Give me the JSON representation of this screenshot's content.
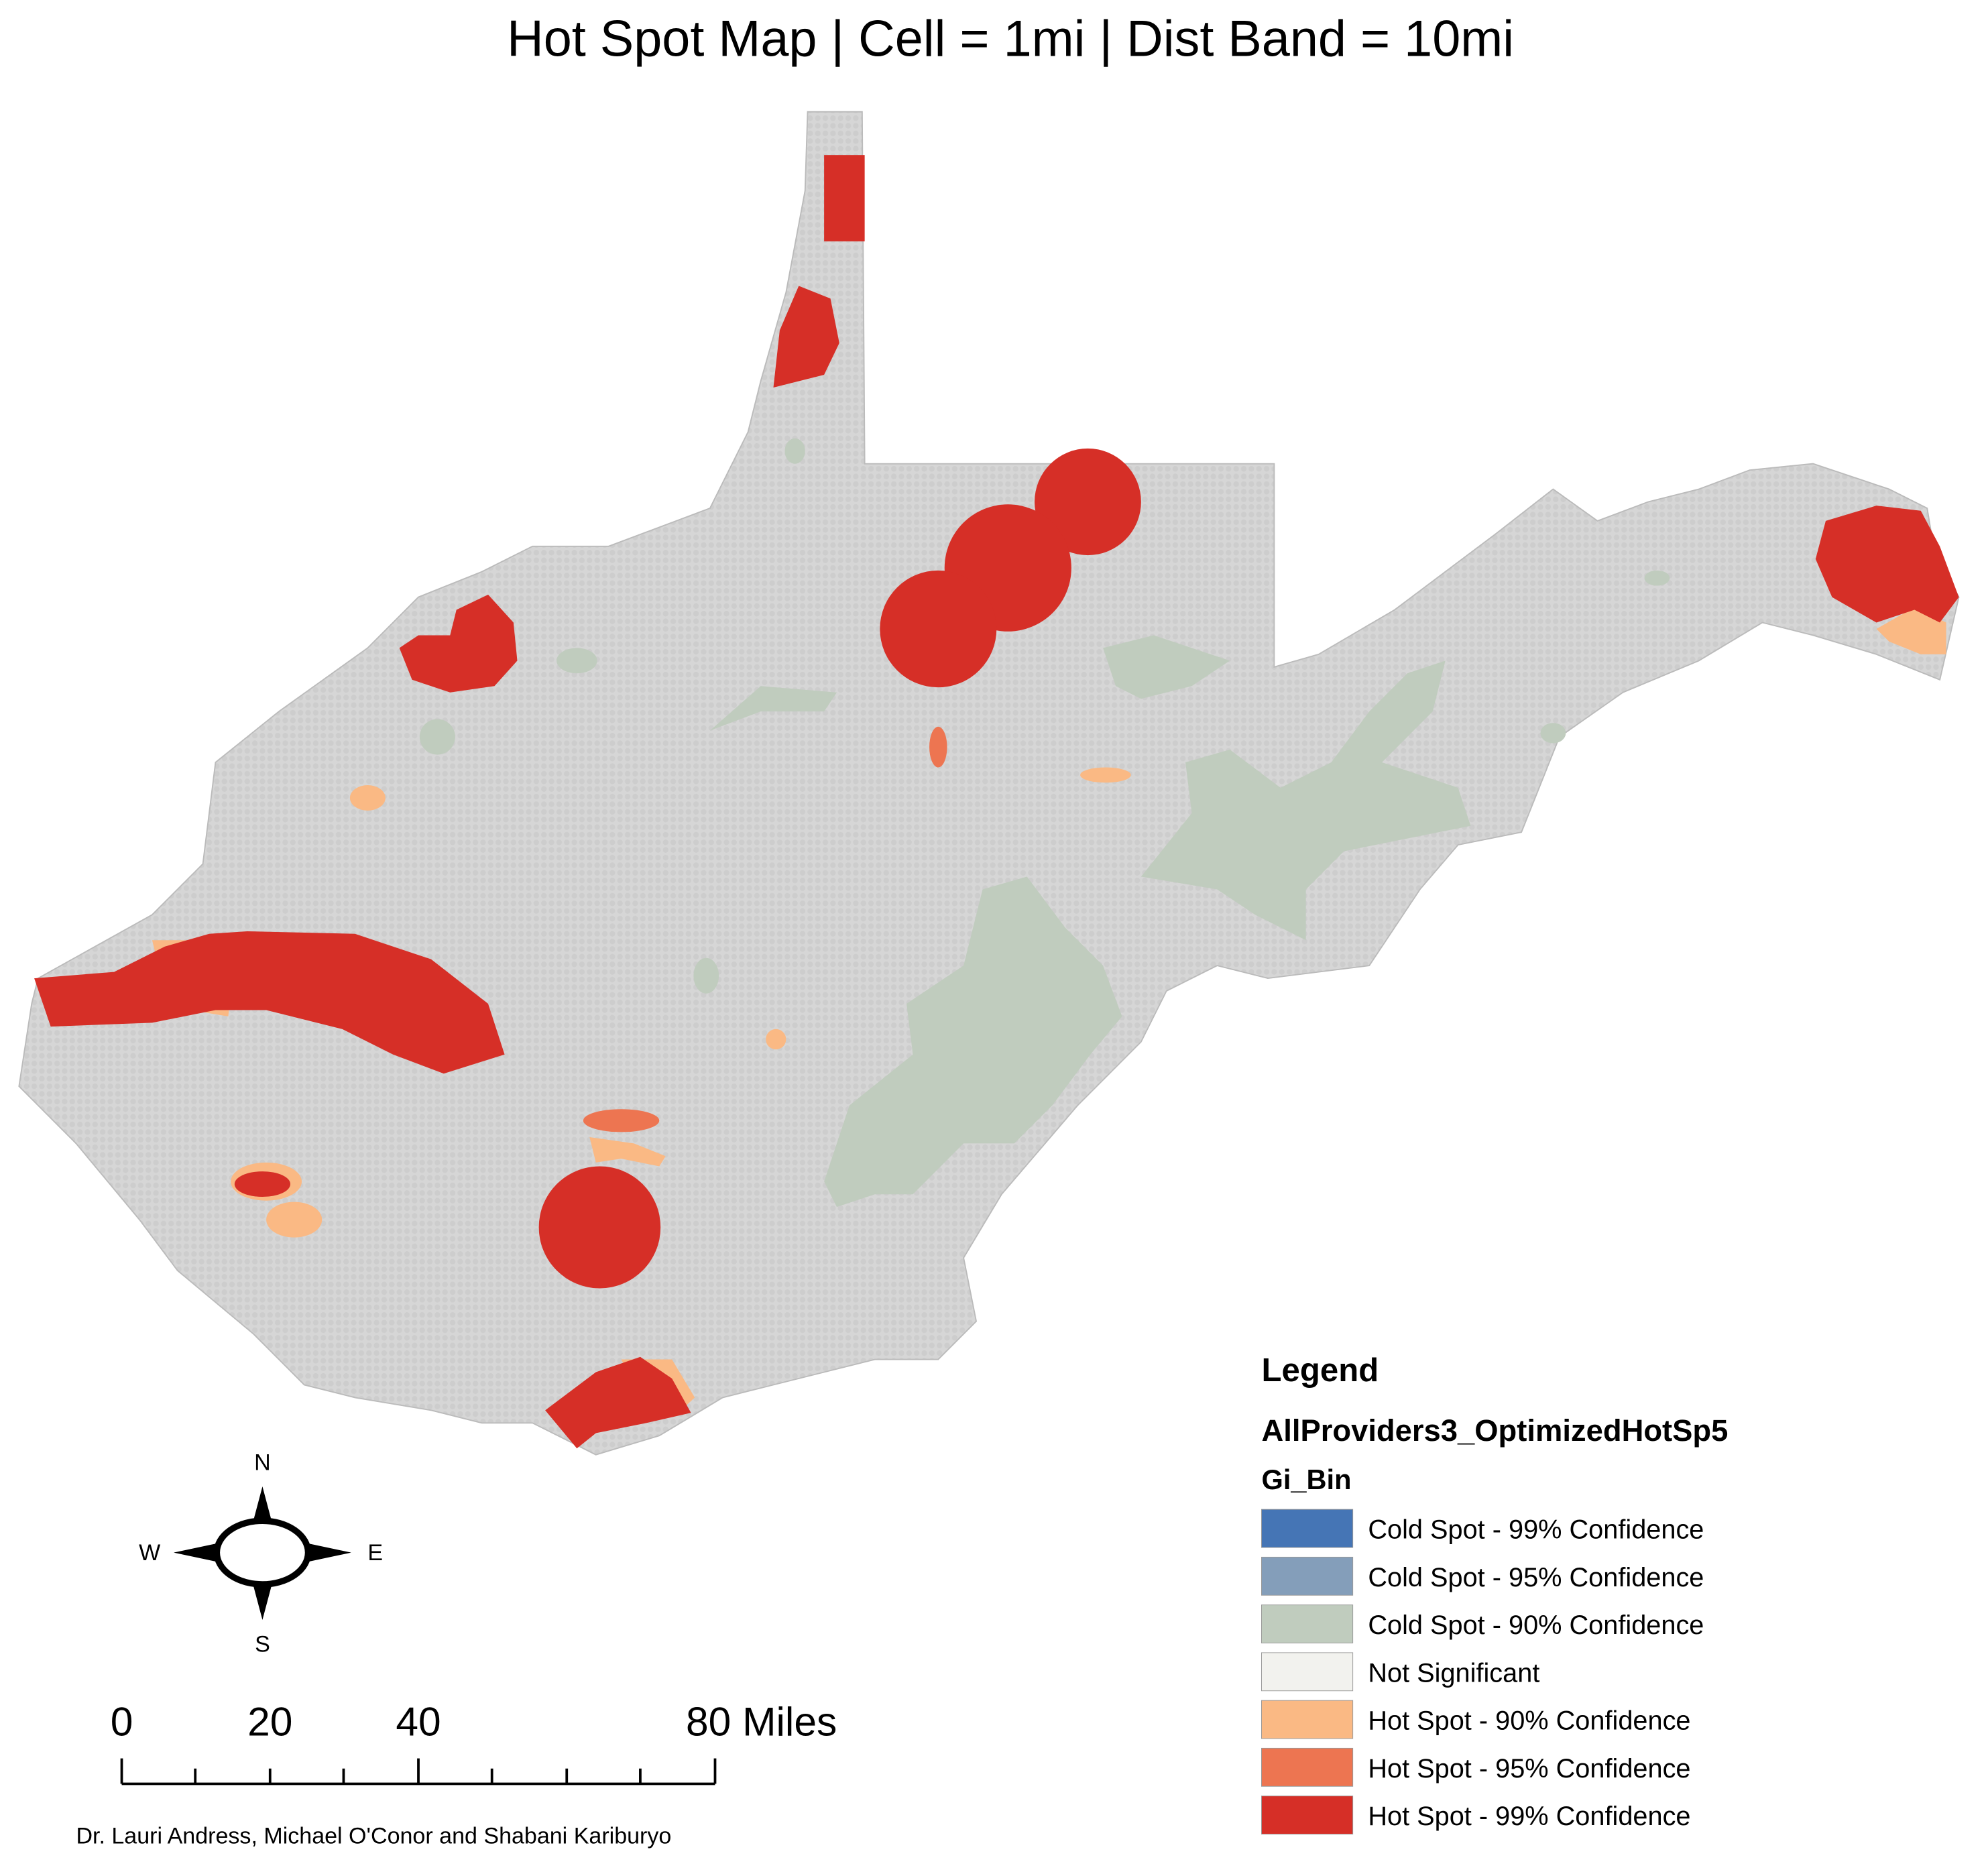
{
  "title": "Hot Spot Map | Cell = 1mi | Dist Band = 10mi",
  "legend": {
    "title": "Legend",
    "layer": "AllProviders3_OptimizedHotSp5",
    "field": "Gi_Bin",
    "items": [
      {
        "label": "Cold Spot - 99% Confidence",
        "color": "#4575b5"
      },
      {
        "label": "Cold Spot - 95% Confidence",
        "color": "#849eba"
      },
      {
        "label": "Cold Spot - 90% Confidence",
        "color": "#c0ccbe"
      },
      {
        "label": "Not Significant",
        "color": "#f2f2ee"
      },
      {
        "label": "Hot Spot - 90% Confidence",
        "color": "#fab984"
      },
      {
        "label": "Hot Spot - 95% Confidence",
        "color": "#ed7551"
      },
      {
        "label": "Hot Spot - 99% Confidence",
        "color": "#d62f27"
      }
    ]
  },
  "compass": {
    "n": "N",
    "s": "S",
    "e": "E",
    "w": "W"
  },
  "scale_bar": {
    "labels": [
      "0",
      "20",
      "40",
      "80 Miles"
    ]
  },
  "credits": "Dr. Lauri Andress, Michael O'Conor and Shabani Kariburyo"
}
